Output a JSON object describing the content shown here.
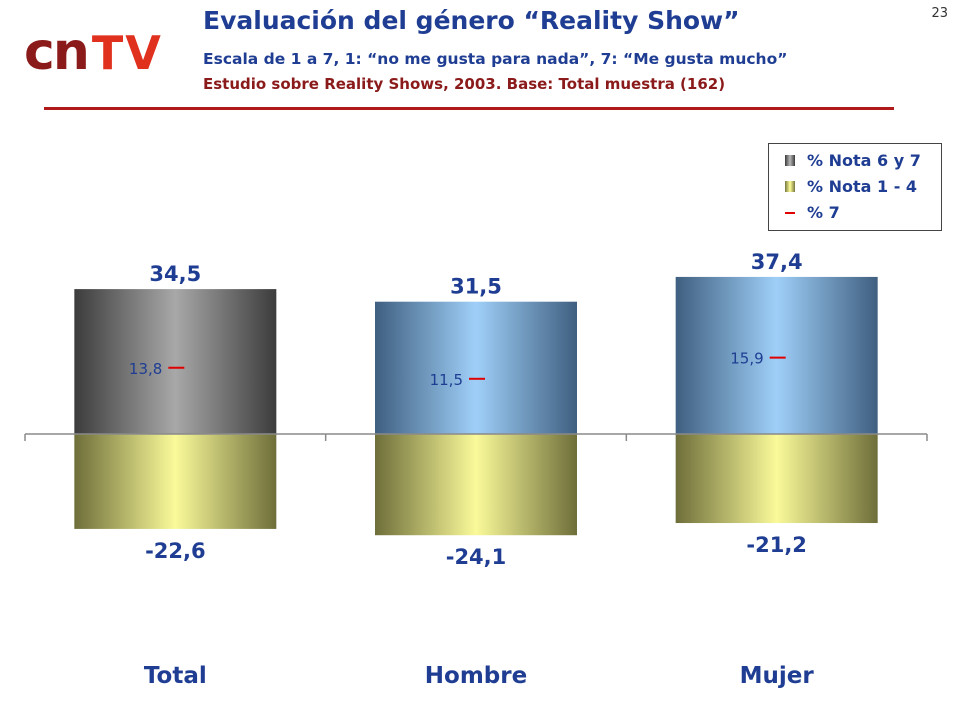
{
  "slide": {
    "logo_cn": "cn",
    "logo_tv": "TV",
    "title": "Evaluación del género “Reality Show”",
    "subtitle": "Escala de 1 a 7, 1: “no me gusta para nada”, 7: “Me gusta mucho”",
    "source": "Estudio sobre Reality Shows, 2003. Base: Total muestra (162)",
    "slide_number": "23"
  },
  "chart_data": {
    "type": "bar",
    "categories": [
      "Total",
      "Hombre",
      "Mujer"
    ],
    "series": [
      {
        "name": "% Nota 6 y 7",
        "values": [
          34.5,
          31.5,
          37.4
        ],
        "labels": [
          "34,5",
          "31,5",
          "37,4"
        ]
      },
      {
        "name": "% Nota 1 - 4",
        "values": [
          -22.6,
          -24.1,
          -21.2
        ],
        "labels": [
          "-22,6",
          "-24,1",
          "-21,2"
        ]
      },
      {
        "name": "% 7",
        "values": [
          13.8,
          11.5,
          15.9
        ],
        "labels": [
          "13,8",
          "11,5",
          "15,9"
        ]
      }
    ],
    "legend_marker_7": "—",
    "legend_position": "top-right",
    "colors": {
      "total_positive": "#8a8a8a",
      "gender_positive": "#8fbfe8",
      "negative": "#e6e68a",
      "marker": "#e00000",
      "text": "#1f3e93"
    }
  }
}
